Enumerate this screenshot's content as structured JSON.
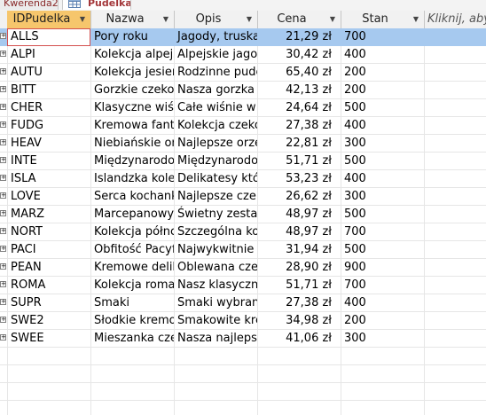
{
  "tabs": [
    {
      "label": "Kwerenda2",
      "active": false
    },
    {
      "label": "Pudelka",
      "active": true
    }
  ],
  "columns": [
    {
      "label": "IDPudelka",
      "selected": true
    },
    {
      "label": "Nazwa",
      "selected": false
    },
    {
      "label": "Opis",
      "selected": false
    },
    {
      "label": "Cena",
      "selected": false
    },
    {
      "label": "Stan",
      "selected": false
    }
  ],
  "new_column_label": "Kliknij, aby",
  "rows": [
    {
      "id": "ALLS",
      "nazwa": "Pory roku",
      "opis": "Jagody, truskaw",
      "cena": "21,29 zł",
      "stan": "700"
    },
    {
      "id": "ALPI",
      "nazwa": "Kolekcja alpejs",
      "opis": "Alpejskie jagod",
      "cena": "30,42 zł",
      "stan": "400"
    },
    {
      "id": "AUTU",
      "nazwa": "Kolekcja jesien",
      "opis": "Rodzinne pude",
      "cena": "65,40 zł",
      "stan": "200"
    },
    {
      "id": "BITT",
      "nazwa": "Gorzkie czekol",
      "opis": "Nasza gorzka c",
      "cena": "42,13 zł",
      "stan": "200"
    },
    {
      "id": "CHER",
      "nazwa": "Klasyczne wiśr",
      "opis": "Całe wiśnie w",
      "cena": "24,64 zł",
      "stan": "500"
    },
    {
      "id": "FUDG",
      "nazwa": "Kremowa fanta",
      "opis": "Kolekcja czeko",
      "cena": "27,38 zł",
      "stan": "400"
    },
    {
      "id": "HEAV",
      "nazwa": "Niebiańskie or",
      "opis": "Najlepsze orze",
      "cena": "22,81 zł",
      "stan": "300"
    },
    {
      "id": "INTE",
      "nazwa": "Międzynarodo",
      "opis": "Międzynarodo",
      "cena": "51,71 zł",
      "stan": "500"
    },
    {
      "id": "ISLA",
      "nazwa": "Islandzka kolel",
      "opis": "Delikatesy któ",
      "cena": "53,23 zł",
      "stan": "400"
    },
    {
      "id": "LOVE",
      "nazwa": "Serca kochank",
      "opis": "Najlepsze czek",
      "cena": "26,62 zł",
      "stan": "300"
    },
    {
      "id": "MARZ",
      "nazwa": "Marcepanowy",
      "opis": "Świetny zestav",
      "cena": "48,97 zł",
      "stan": "500"
    },
    {
      "id": "NORT",
      "nazwa": "Kolekcja półnc",
      "opis": "Szczególna kol",
      "cena": "48,97 zł",
      "stan": "700"
    },
    {
      "id": "PACI",
      "nazwa": "Obfitość Pacyf",
      "opis": "Najwykwitnie",
      "cena": "31,94 zł",
      "stan": "500"
    },
    {
      "id": "PEAN",
      "nazwa": "Kremowe delil",
      "opis": "Oblewana czel",
      "cena": "28,90 zł",
      "stan": "900"
    },
    {
      "id": "ROMA",
      "nazwa": "Kolekcja romai",
      "opis": "Nasz klasyczny",
      "cena": "51,71 zł",
      "stan": "700"
    },
    {
      "id": "SUPR",
      "nazwa": "Smaki",
      "opis": "Smaki wybrany",
      "cena": "27,38 zł",
      "stan": "400"
    },
    {
      "id": "SWE2",
      "nazwa": "Słodkie kremo",
      "opis": "Smakowite kre",
      "cena": "34,98 zł",
      "stan": "200"
    },
    {
      "id": "SWEE",
      "nazwa": "Mieszanka cze",
      "opis": "Nasza najlepsz",
      "cena": "41,06 zł",
      "stan": "300"
    }
  ],
  "colors": {
    "selected_header": "#f6c66c",
    "current_row": "#a6c9ef",
    "focus_border": "#d4504f",
    "tab_text": "#a4373a"
  },
  "icons": {
    "tab_active": "table-icon",
    "sort": "dropdown-arrow-icon",
    "expand": "expand-plus-icon"
  }
}
